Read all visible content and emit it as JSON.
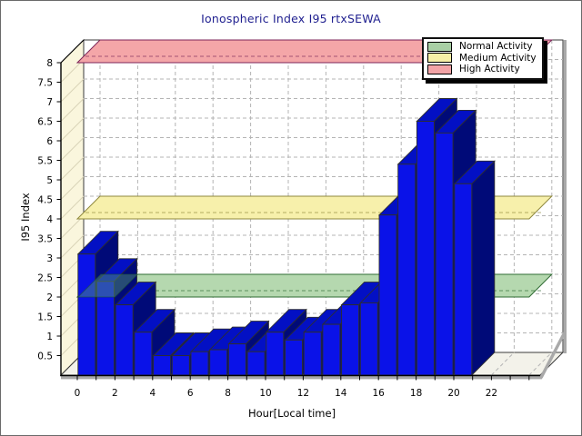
{
  "title": {
    "text": "Ionospheric Index I95 rtxSEWA",
    "color": "#1f1f8f"
  },
  "axes": {
    "x": {
      "title": "Hour[Local time]",
      "labeled_ticks": [
        0,
        2,
        4,
        6,
        8,
        10,
        12,
        14,
        16,
        18,
        20,
        22
      ],
      "range": [
        0,
        24
      ]
    },
    "y": {
      "title": "I95 Index",
      "min": 0,
      "max": 8,
      "tick_interval": 0.5
    }
  },
  "legend": {
    "items": [
      {
        "label": "Normal Activity",
        "swatch": "#a9cfa5"
      },
      {
        "label": "Medium Activity",
        "swatch": "#f6efa6"
      },
      {
        "label": "High Activity",
        "swatch": "#f3a4a7"
      }
    ]
  },
  "colors": {
    "back_wall": "#ffffff",
    "left_wall": "#faf6dd",
    "left_wall_hatch": "#d9d4b8",
    "floor": "#f3f2ea",
    "gridline": "#b4b4b4",
    "frame_edge": "#3a3a3a",
    "axis_line": "#000000",
    "lip_gray": "#a9a9a9",
    "band_overlay_fill": "rgba(86,158,112,0.45)",
    "band_overlay_edge": "rgba(25,85,45,0.55)"
  },
  "chart_data": {
    "type": "bar",
    "title": "Ionospheric Index I95 rtxSEWA",
    "xlabel": "Hour[Local time]",
    "ylabel": "I95 Index",
    "xlim": [
      0,
      24
    ],
    "ylim": [
      0,
      8
    ],
    "grid": true,
    "legend_position": "top-right",
    "x": [
      0,
      1,
      2,
      3,
      4,
      5,
      6,
      7,
      8,
      9,
      10,
      11,
      12,
      13,
      14,
      15,
      16,
      17,
      18,
      19,
      20
    ],
    "values": [
      3.1,
      2.4,
      1.8,
      1.1,
      0.5,
      0.5,
      0.6,
      0.65,
      0.8,
      0.6,
      1.1,
      0.9,
      1.1,
      1.3,
      1.8,
      1.85,
      4.1,
      5.4,
      6.5,
      6.2,
      4.9
    ],
    "bar_colors": {
      "front": "#0a12e8",
      "side": "#000a78",
      "top": "#0310c4",
      "edge": "#2e2e2e"
    },
    "bands": [
      {
        "label": "Normal Activity",
        "value": 2,
        "fill": "#b5d8af",
        "border": "#2f6b33"
      },
      {
        "label": "Medium Activity",
        "value": 4,
        "fill": "#f7f0ab",
        "border": "#8f883c"
      },
      {
        "label": "High Activity",
        "value": 8,
        "fill": "#f4a6a8",
        "border": "#7c2458"
      }
    ]
  }
}
